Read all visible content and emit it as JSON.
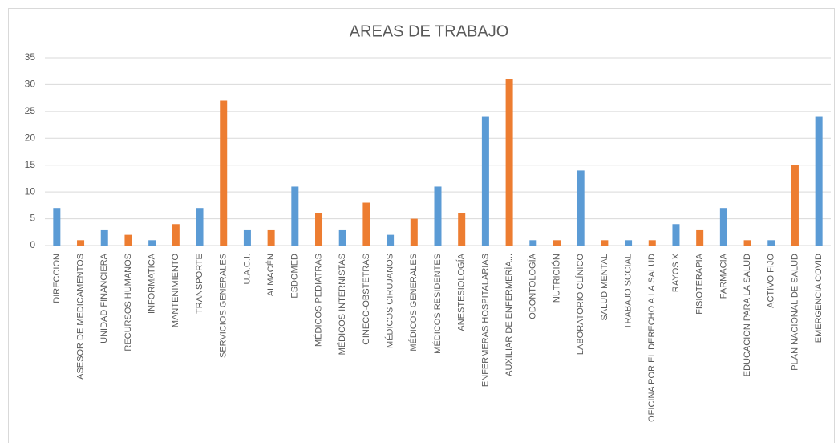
{
  "chart_data": {
    "type": "bar",
    "title": "AREAS DE TRABAJO",
    "categories": [
      "DIRECCION",
      "ASESOR DE MEDICAMENTOS",
      "UNIDAD FINANCIERA",
      "RECURSOS HUMANOS",
      "INFORMATICA",
      "MANTENIMIENTO",
      "TRANSPORTE",
      "SERVICIOS GENERALES",
      "U.A.C.I.",
      "ALMACÉN",
      "ESDOMED",
      "MÉDICOS PEDIATRAS",
      "MÉDICOS INTERNISTAS",
      "GINECO-OBSTETRAS",
      "MÉDICOS CIRUJANOS",
      "MÉDICOS GENERALES",
      "MÉDICOS RESIDENTES",
      "ANESTESIOLOGÍA",
      "ENFERMERAS HOSPITALARIAS",
      "AUXILIAR DE ENFERMERÍA...",
      "ODONTOLOGÍA",
      "NUTRICIÓN",
      "LABORATORIO CLÍNICO",
      "SALUD MENTAL",
      "TRABAJO SOCIAL",
      "OFICINA POR EL DERECHO A LA SALUD",
      "RAYOS X",
      "FISIOTERAPIA",
      "FARMACIA",
      "EDUCACION PARA LA SALUD",
      "ACTIVO FIJO",
      "PLAN NACIONAL DE SALUD",
      "EMERGENCIA COVID"
    ],
    "values": [
      7,
      1,
      3,
      2,
      1,
      4,
      7,
      27,
      3,
      3,
      11,
      6,
      3,
      8,
      2,
      5,
      11,
      6,
      24,
      31,
      1,
      1,
      14,
      1,
      1,
      1,
      4,
      3,
      7,
      1,
      1,
      15,
      24
    ],
    "colors": [
      "#5b9bd5",
      "#ed7d31",
      "#5b9bd5",
      "#ed7d31",
      "#5b9bd5",
      "#ed7d31",
      "#5b9bd5",
      "#ed7d31",
      "#5b9bd5",
      "#ed7d31",
      "#5b9bd5",
      "#ed7d31",
      "#5b9bd5",
      "#ed7d31",
      "#5b9bd5",
      "#ed7d31",
      "#5b9bd5",
      "#ed7d31",
      "#5b9bd5",
      "#ed7d31",
      "#5b9bd5",
      "#ed7d31",
      "#5b9bd5",
      "#ed7d31",
      "#5b9bd5",
      "#ed7d31",
      "#5b9bd5",
      "#ed7d31",
      "#5b9bd5",
      "#ed7d31",
      "#5b9bd5",
      "#ed7d31",
      "#5b9bd5"
    ],
    "ylim": [
      0,
      35
    ],
    "yticks": [
      0,
      5,
      10,
      15,
      20,
      25,
      30,
      35
    ],
    "grid": true
  }
}
